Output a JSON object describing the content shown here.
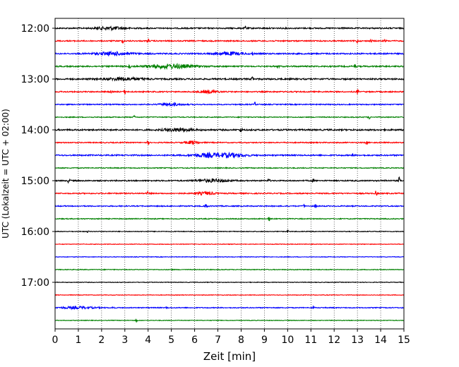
{
  "chart_data": {
    "type": "line",
    "chart_kind": "helicorder",
    "xlabel": "Zeit  [min]",
    "ylabel": "UTC (Lokalzeit = UTC + 02:00)",
    "xlim": [
      0,
      15
    ],
    "x_ticks": [
      "0",
      "1",
      "2",
      "3",
      "4",
      "5",
      "6",
      "7",
      "8",
      "9",
      "10",
      "11",
      "12",
      "13",
      "14",
      "15"
    ],
    "vertical_grid": "dotted",
    "row_interval_min": 15,
    "start_time": "12:00",
    "y_tick_labels": [
      "12:00",
      "13:00",
      "14:00",
      "15:00",
      "16:00",
      "17:00"
    ],
    "color_cycle": [
      "#000000",
      "#ff0000",
      "#0000ff",
      "#008000"
    ],
    "series": [
      {
        "start": "12:00",
        "color": "#000000",
        "noise": 0.9,
        "bursts": [
          [
            2.4,
            0.6,
            2.0
          ]
        ],
        "spikes": [
          [
            8.2,
            4.0
          ]
        ]
      },
      {
        "start": "12:15",
        "color": "#ff0000",
        "noise": 0.8,
        "bursts": [],
        "spikes": [
          [
            2.9,
            2.5
          ],
          [
            4.0,
            3.0
          ],
          [
            13.0,
            3.0
          ],
          [
            13.6,
            2.0
          ],
          [
            14.2,
            2.0
          ]
        ]
      },
      {
        "start": "12:30",
        "color": "#0000ff",
        "noise": 0.9,
        "bursts": [
          [
            2.5,
            0.8,
            2.0
          ],
          [
            7.5,
            0.6,
            2.0
          ]
        ],
        "spikes": [
          [
            8.5,
            2.0
          ]
        ]
      },
      {
        "start": "12:45",
        "color": "#008000",
        "noise": 0.9,
        "bursts": [
          [
            5.0,
            1.0,
            2.8
          ]
        ],
        "spikes": [
          [
            3.2,
            3.0
          ],
          [
            9.6,
            2.0
          ],
          [
            12.9,
            3.0
          ]
        ]
      },
      {
        "start": "13:00",
        "color": "#000000",
        "noise": 1.0,
        "bursts": [
          [
            3.0,
            0.8,
            1.8
          ]
        ],
        "spikes": [
          [
            8.5,
            4.0
          ]
        ]
      },
      {
        "start": "13:15",
        "color": "#ff0000",
        "noise": 0.8,
        "bursts": [
          [
            6.6,
            0.4,
            1.8
          ]
        ],
        "spikes": [
          [
            2.4,
            2.0
          ],
          [
            3.0,
            3.0
          ],
          [
            13.0,
            3.5
          ]
        ]
      },
      {
        "start": "13:30",
        "color": "#0000ff",
        "noise": 0.7,
        "bursts": [
          [
            5.0,
            0.5,
            1.5
          ]
        ],
        "spikes": [
          [
            8.6,
            3.0
          ]
        ]
      },
      {
        "start": "13:45",
        "color": "#008000",
        "noise": 0.6,
        "bursts": [],
        "spikes": [
          [
            3.4,
            2.0
          ],
          [
            13.5,
            3.5
          ]
        ]
      },
      {
        "start": "14:00",
        "color": "#000000",
        "noise": 1.0,
        "bursts": [
          [
            5.3,
            0.6,
            2.2
          ]
        ],
        "spikes": [
          [
            8.0,
            4.0
          ]
        ]
      },
      {
        "start": "14:15",
        "color": "#ff0000",
        "noise": 0.7,
        "bursts": [
          [
            5.9,
            0.3,
            2.2
          ]
        ],
        "spikes": [
          [
            4.0,
            2.5
          ],
          [
            13.4,
            2.5
          ]
        ]
      },
      {
        "start": "14:30",
        "color": "#0000ff",
        "noise": 0.9,
        "bursts": [
          [
            6.5,
            0.6,
            2.2
          ],
          [
            7.5,
            0.7,
            2.5
          ]
        ],
        "spikes": [
          [
            12.8,
            2.0
          ]
        ]
      },
      {
        "start": "14:45",
        "color": "#008000",
        "noise": 0.6,
        "bursts": [],
        "spikes": []
      },
      {
        "start": "15:00",
        "color": "#000000",
        "noise": 0.8,
        "bursts": [
          [
            6.8,
            0.7,
            2.0
          ]
        ],
        "spikes": [
          [
            0.6,
            4.5
          ],
          [
            9.2,
            3.0
          ],
          [
            11.1,
            2.0
          ],
          [
            14.2,
            2.5
          ],
          [
            14.8,
            4.5
          ]
        ]
      },
      {
        "start": "15:15",
        "color": "#ff0000",
        "noise": 0.8,
        "bursts": [
          [
            6.5,
            0.4,
            1.8
          ]
        ],
        "spikes": [
          [
            4.0,
            3.0
          ],
          [
            13.8,
            3.5
          ]
        ]
      },
      {
        "start": "15:30",
        "color": "#0000ff",
        "noise": 0.7,
        "bursts": [],
        "spikes": [
          [
            6.5,
            5.0
          ],
          [
            10.7,
            2.0
          ],
          [
            11.2,
            3.0
          ]
        ]
      },
      {
        "start": "15:45",
        "color": "#008000",
        "noise": 0.6,
        "bursts": [],
        "spikes": [
          [
            9.2,
            3.0
          ]
        ]
      },
      {
        "start": "16:00",
        "color": "#000000",
        "noise": 0.5,
        "bursts": [],
        "spikes": [
          [
            1.4,
            1.5
          ],
          [
            10.0,
            1.5
          ]
        ]
      },
      {
        "start": "16:15",
        "color": "#ff0000",
        "noise": 0.4,
        "bursts": [],
        "spikes": []
      },
      {
        "start": "16:30",
        "color": "#0000ff",
        "noise": 0.4,
        "bursts": [],
        "spikes": []
      },
      {
        "start": "16:45",
        "color": "#008000",
        "noise": 0.5,
        "bursts": [],
        "spikes": [
          [
            5.0,
            1.5
          ]
        ]
      },
      {
        "start": "17:00",
        "color": "#000000",
        "noise": 0.4,
        "bursts": [],
        "spikes": []
      },
      {
        "start": "17:15",
        "color": "#ff0000",
        "noise": 0.4,
        "bursts": [],
        "spikes": []
      },
      {
        "start": "17:30",
        "color": "#0000ff",
        "noise": 0.6,
        "bursts": [
          [
            1.0,
            0.8,
            1.4
          ]
        ],
        "spikes": [
          [
            2.5,
            3.0
          ],
          [
            4.8,
            1.5
          ],
          [
            11.1,
            3.0
          ]
        ]
      },
      {
        "start": "17:45",
        "color": "#008000",
        "noise": 0.4,
        "bursts": [],
        "spikes": [
          [
            3.5,
            1.5
          ]
        ]
      }
    ]
  }
}
